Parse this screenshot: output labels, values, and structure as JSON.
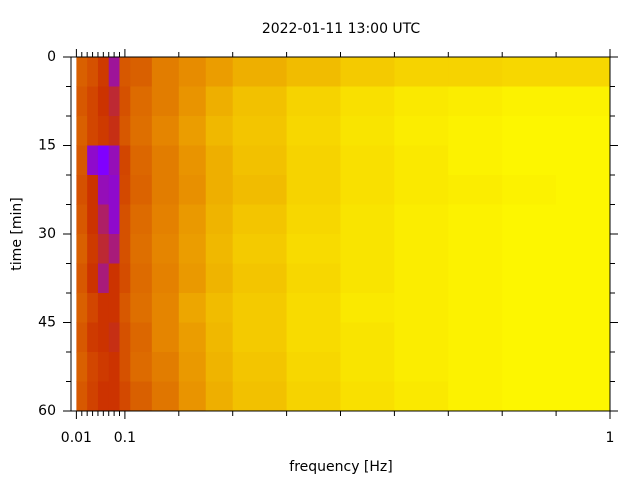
{
  "chart_data": {
    "type": "heatmap",
    "title": "2022-01-11 13:00 UTC",
    "xlabel": "frequency [Hz]",
    "ylabel": "time [min]",
    "xlim": [
      0,
      1
    ],
    "ylim": [
      0,
      60
    ],
    "xticks": [
      0.01,
      0.1,
      1
    ],
    "xminor": [
      0.02,
      0.03,
      0.04,
      0.05,
      0.06,
      0.07,
      0.08,
      0.09,
      0.2,
      0.3,
      0.4,
      0.5,
      0.6,
      0.7,
      0.8,
      0.9
    ],
    "yticks": [
      0,
      15,
      30,
      45,
      60
    ],
    "yminor": [
      5,
      10,
      20,
      25,
      35,
      40,
      50,
      55
    ],
    "xbins": [
      0.01,
      0.03,
      0.05,
      0.07,
      0.09,
      0.11,
      0.15,
      0.2,
      0.25,
      0.3,
      0.4,
      0.5,
      0.6,
      0.7,
      0.8,
      0.9,
      1.0
    ],
    "ybins": [
      0,
      5,
      10,
      15,
      20,
      25,
      30,
      35,
      40,
      45,
      50,
      55,
      60
    ],
    "colormap": [
      "#000000",
      "#8000ff",
      "#cc3300",
      "#e89000",
      "#ffff00"
    ],
    "z": [
      [
        0.62,
        0.58,
        0.52,
        0.35,
        0.6,
        0.62,
        0.7,
        0.74,
        0.78,
        0.82,
        0.85,
        0.88,
        0.9,
        0.9,
        0.91,
        0.91
      ],
      [
        0.6,
        0.55,
        0.5,
        0.45,
        0.58,
        0.65,
        0.7,
        0.76,
        0.82,
        0.86,
        0.9,
        0.93,
        0.95,
        0.96,
        0.97,
        0.97
      ],
      [
        0.62,
        0.55,
        0.52,
        0.48,
        0.6,
        0.66,
        0.72,
        0.78,
        0.84,
        0.87,
        0.91,
        0.94,
        0.96,
        0.97,
        0.98,
        0.98
      ],
      [
        0.6,
        0.3,
        0.25,
        0.32,
        0.55,
        0.64,
        0.7,
        0.76,
        0.82,
        0.86,
        0.9,
        0.93,
        0.95,
        0.97,
        0.98,
        0.98
      ],
      [
        0.58,
        0.5,
        0.32,
        0.3,
        0.56,
        0.63,
        0.7,
        0.75,
        0.82,
        0.85,
        0.9,
        0.93,
        0.95,
        0.96,
        0.97,
        0.98
      ],
      [
        0.6,
        0.5,
        0.4,
        0.3,
        0.58,
        0.65,
        0.71,
        0.77,
        0.83,
        0.87,
        0.91,
        0.94,
        0.96,
        0.97,
        0.98,
        0.98
      ],
      [
        0.62,
        0.52,
        0.45,
        0.38,
        0.58,
        0.66,
        0.72,
        0.78,
        0.84,
        0.88,
        0.92,
        0.94,
        0.96,
        0.97,
        0.98,
        0.98
      ],
      [
        0.6,
        0.5,
        0.38,
        0.5,
        0.57,
        0.65,
        0.71,
        0.77,
        0.83,
        0.87,
        0.91,
        0.94,
        0.96,
        0.97,
        0.98,
        0.98
      ],
      [
        0.62,
        0.55,
        0.5,
        0.5,
        0.6,
        0.66,
        0.72,
        0.8,
        0.85,
        0.88,
        0.92,
        0.95,
        0.96,
        0.97,
        0.98,
        0.98
      ],
      [
        0.6,
        0.52,
        0.5,
        0.48,
        0.58,
        0.64,
        0.72,
        0.78,
        0.84,
        0.88,
        0.92,
        0.94,
        0.96,
        0.97,
        0.98,
        0.98
      ],
      [
        0.62,
        0.55,
        0.52,
        0.5,
        0.58,
        0.65,
        0.7,
        0.77,
        0.83,
        0.87,
        0.91,
        0.94,
        0.96,
        0.97,
        0.98,
        0.98
      ],
      [
        0.6,
        0.54,
        0.5,
        0.5,
        0.56,
        0.62,
        0.68,
        0.76,
        0.82,
        0.86,
        0.9,
        0.93,
        0.95,
        0.97,
        0.98,
        0.98
      ]
    ]
  }
}
